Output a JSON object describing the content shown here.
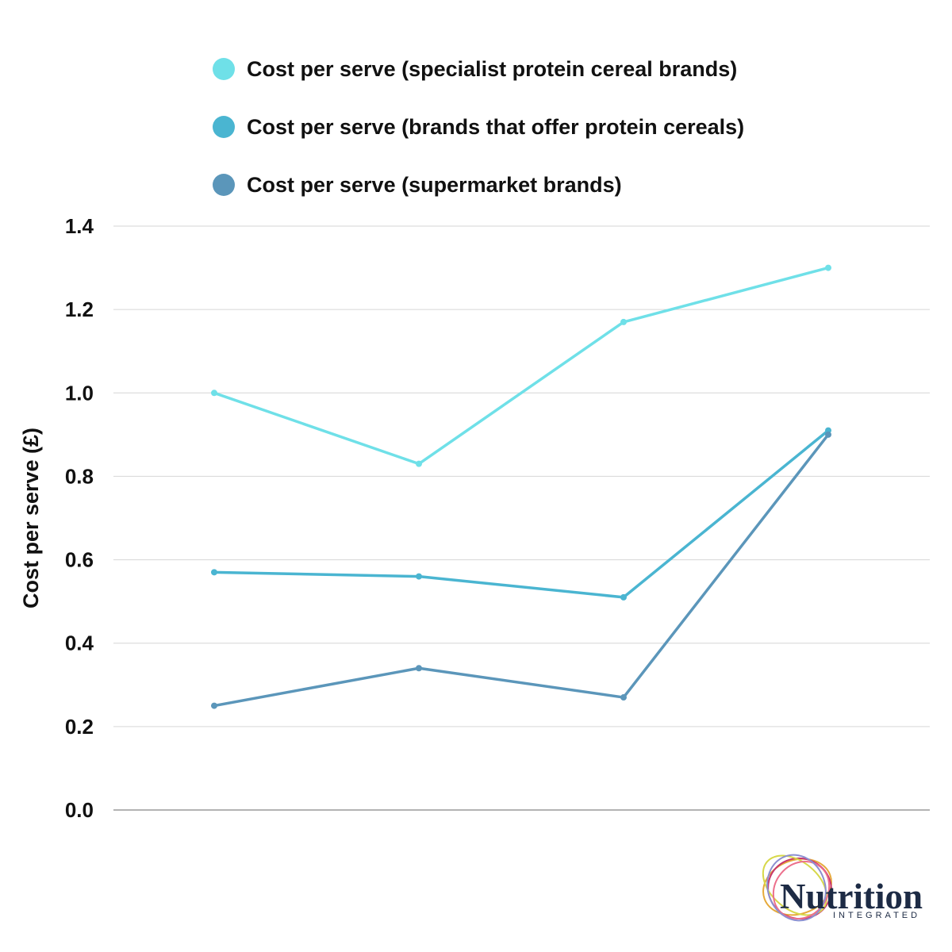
{
  "chart_data": {
    "type": "line",
    "x": [
      1,
      2,
      3,
      4
    ],
    "series": [
      {
        "name": "Cost per serve (specialist protein cereal brands)",
        "color": "#6fe0e8",
        "values": [
          1.0,
          0.83,
          1.17,
          1.3
        ]
      },
      {
        "name": "Cost per serve (brands that offer protein cereals)",
        "color": "#4ab5d1",
        "values": [
          0.57,
          0.56,
          0.51,
          0.91
        ]
      },
      {
        "name": "Cost per serve (supermarket brands)",
        "color": "#5b96ba",
        "values": [
          0.25,
          0.34,
          0.27,
          0.9
        ]
      }
    ],
    "ylabel": "Cost per serve (£)",
    "xlabel": "",
    "ylim": [
      0,
      1.4
    ],
    "yticks": [
      "0.0",
      "0.2",
      "0.4",
      "0.6",
      "0.8",
      "1.0",
      "1.2",
      "1.4"
    ],
    "grid": true,
    "legend_position": "top"
  },
  "logo": {
    "word": "Nutrition",
    "subtitle": "INTEGRATED"
  }
}
